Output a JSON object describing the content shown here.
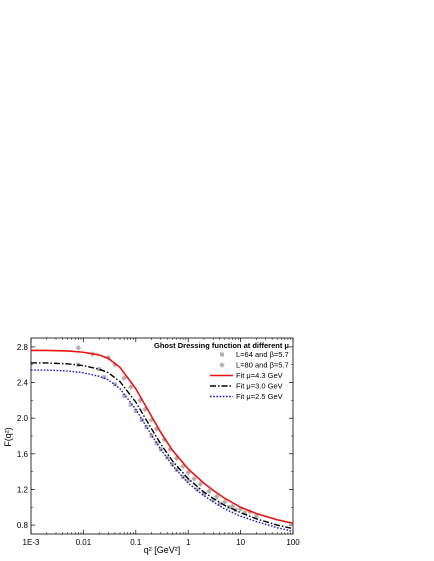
{
  "chart_data": {
    "type": "line",
    "title": "",
    "xlabel": "q² [GeV²]",
    "ylabel": "F(q²)",
    "xscale": "log",
    "xlim": [
      0.001,
      100
    ],
    "ylim": [
      0.7,
      2.9
    ],
    "xticks": [
      {
        "value": 0.001,
        "label": "1E-3"
      },
      {
        "value": 0.01,
        "label": "0.01"
      },
      {
        "value": 0.1,
        "label": "0.1"
      },
      {
        "value": 1,
        "label": "1"
      },
      {
        "value": 10,
        "label": "10"
      },
      {
        "value": 100,
        "label": "100"
      }
    ],
    "yticks": [
      0.8,
      1.2,
      1.6,
      2.0,
      2.4,
      2.8
    ],
    "ytick_labels": [
      "0.8",
      "1.2",
      "1.6",
      "2.0",
      "2.4",
      "2.8"
    ],
    "legend": {
      "title": "Ghost Dressing function at different μ",
      "placement": "top-right",
      "entries": [
        {
          "label": "L=64 and β=5.7",
          "kind": "marker",
          "marker": "square",
          "color": "#b0b0b0"
        },
        {
          "label": "L=80 and β=5.7",
          "kind": "marker",
          "marker": "diamond",
          "color": "#b0b0b0"
        },
        {
          "label": "Fit μ=4.3 GeV",
          "kind": "line",
          "dash": "solid",
          "color": "#ee1111"
        },
        {
          "label": "Fit μ=3.0 GeV",
          "kind": "line",
          "dash": "dashdot",
          "color": "#000000"
        },
        {
          "label": "Fit μ=2.5 GeV",
          "kind": "line",
          "dash": "dot",
          "color": "#1a1acc"
        }
      ]
    },
    "series": [
      {
        "name": "Fit μ=4.3 GeV",
        "kind": "line",
        "dash": "solid",
        "color": "#ee1111",
        "points": [
          [
            0.001,
            2.76
          ],
          [
            0.002,
            2.76
          ],
          [
            0.005,
            2.755
          ],
          [
            0.01,
            2.74
          ],
          [
            0.02,
            2.71
          ],
          [
            0.03,
            2.67
          ],
          [
            0.05,
            2.57
          ],
          [
            0.1,
            2.33
          ],
          [
            0.2,
            2.02
          ],
          [
            0.3,
            1.84
          ],
          [
            0.5,
            1.64
          ],
          [
            1,
            1.43
          ],
          [
            2,
            1.27
          ],
          [
            3,
            1.19
          ],
          [
            5,
            1.1
          ],
          [
            10,
            1.0
          ],
          [
            20,
            0.93
          ],
          [
            50,
            0.86
          ],
          [
            100,
            0.82
          ]
        ]
      },
      {
        "name": "Fit μ=3.0 GeV",
        "kind": "line",
        "dash": "dashdot",
        "color": "#000000",
        "points": [
          [
            0.001,
            2.62
          ],
          [
            0.002,
            2.62
          ],
          [
            0.005,
            2.61
          ],
          [
            0.01,
            2.59
          ],
          [
            0.02,
            2.55
          ],
          [
            0.03,
            2.51
          ],
          [
            0.05,
            2.41
          ],
          [
            0.1,
            2.18
          ],
          [
            0.2,
            1.88
          ],
          [
            0.3,
            1.71
          ],
          [
            0.5,
            1.52
          ],
          [
            1,
            1.32
          ],
          [
            2,
            1.17
          ],
          [
            3,
            1.1
          ],
          [
            5,
            1.02
          ],
          [
            10,
            0.94
          ],
          [
            20,
            0.87
          ],
          [
            50,
            0.8
          ],
          [
            100,
            0.76
          ]
        ]
      },
      {
        "name": "Fit μ=2.5 GeV",
        "kind": "line",
        "dash": "dot",
        "color": "#1a1acc",
        "points": [
          [
            0.001,
            2.54
          ],
          [
            0.002,
            2.54
          ],
          [
            0.005,
            2.53
          ],
          [
            0.01,
            2.51
          ],
          [
            0.02,
            2.47
          ],
          [
            0.03,
            2.43
          ],
          [
            0.05,
            2.33
          ],
          [
            0.1,
            2.1
          ],
          [
            0.2,
            1.81
          ],
          [
            0.3,
            1.65
          ],
          [
            0.5,
            1.47
          ],
          [
            1,
            1.27
          ],
          [
            2,
            1.13
          ],
          [
            3,
            1.06
          ],
          [
            5,
            0.98
          ],
          [
            10,
            0.9
          ],
          [
            20,
            0.84
          ],
          [
            50,
            0.77
          ],
          [
            100,
            0.73
          ]
        ]
      },
      {
        "name": "L=64 and β=5.7",
        "kind": "scatter",
        "marker": "square",
        "color": "#b0b0b0",
        "points": [
          [
            0.008,
            2.6
          ],
          [
            0.02,
            2.55
          ],
          [
            0.025,
            2.46
          ],
          [
            0.04,
            2.38
          ],
          [
            0.06,
            2.25
          ],
          [
            0.08,
            2.15
          ],
          [
            0.1,
            2.08
          ],
          [
            0.13,
            1.98
          ],
          [
            0.16,
            1.9
          ],
          [
            0.2,
            1.8
          ],
          [
            0.25,
            1.72
          ],
          [
            0.3,
            1.65
          ],
          [
            0.4,
            1.56
          ],
          [
            0.5,
            1.48
          ],
          [
            0.6,
            1.42
          ],
          [
            0.8,
            1.34
          ],
          [
            1.0,
            1.3
          ],
          [
            1.5,
            1.2
          ],
          [
            2,
            1.15
          ],
          [
            3,
            1.08
          ],
          [
            4,
            1.04
          ],
          [
            6,
            1.0
          ],
          [
            8,
            0.97
          ],
          [
            12,
            0.94
          ],
          [
            20,
            0.9
          ]
        ]
      },
      {
        "name": "L=80 and β=5.7",
        "kind": "scatter",
        "marker": "diamond",
        "color": "#b0b0b0",
        "points": [
          [
            0.008,
            2.79
          ],
          [
            0.015,
            2.72
          ],
          [
            0.03,
            2.68
          ],
          [
            0.04,
            2.6
          ],
          [
            0.06,
            2.45
          ],
          [
            0.08,
            2.35
          ],
          [
            0.12,
            2.2
          ],
          [
            0.15,
            2.1
          ],
          [
            0.2,
            1.98
          ],
          [
            0.25,
            1.88
          ],
          [
            0.35,
            1.76
          ],
          [
            0.45,
            1.65
          ],
          [
            0.6,
            1.55
          ],
          [
            0.8,
            1.46
          ],
          [
            1.0,
            1.39
          ],
          [
            1.3,
            1.32
          ],
          [
            1.7,
            1.26
          ],
          [
            2.5,
            1.18
          ],
          [
            3.5,
            1.12
          ],
          [
            5,
            1.06
          ],
          [
            7,
            1.01
          ],
          [
            10,
            0.98
          ],
          [
            15,
            0.95
          ]
        ]
      }
    ]
  }
}
